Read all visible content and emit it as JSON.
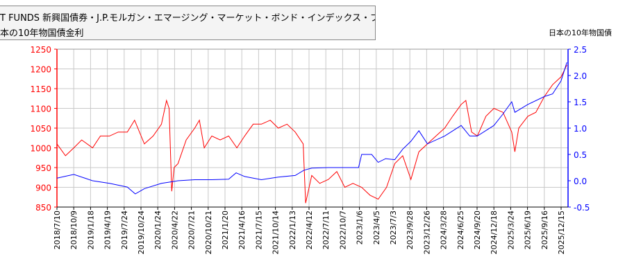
{
  "legend": {
    "line1": "T FUNDS 新興国債券・J.P.モルガン・エマージング・マーケット・ボンド・インデックス・プラス(為替ヘッジ無し)",
    "line2": "本の10年物国債金利"
  },
  "chart_data": {
    "type": "line",
    "right_axis_title": "日本の10年物国債",
    "grid": true,
    "x_ticks": [
      "2018/7/10",
      "2018/10/9",
      "2019/1/18",
      "2019/4/19",
      "2019/7/24",
      "2019/10/24",
      "2020/1/24",
      "2020/4/22",
      "2020/7/21",
      "2020/10/21",
      "2021/1/20",
      "2021/4/16",
      "2021/7/15",
      "2021/10/14",
      "2022/1/13",
      "2022/4/12",
      "2022/7/11",
      "2022/10/7",
      "2023/1/6",
      "2023/4/5",
      "2023/7/3",
      "2023/9/28",
      "2023/12/26",
      "2024/3/28",
      "2024/6/25",
      "2024/9/20",
      "2024/12/18",
      "2025/3/24",
      "2025/6/19",
      "2025/9/16",
      "2025/12/15"
    ],
    "xlim": [
      "2018-07-10",
      "2026-01-20"
    ],
    "left_axis": {
      "ylim": [
        850,
        1250
      ],
      "ticks": [
        850,
        900,
        950,
        1000,
        1050,
        1100,
        1150,
        1200,
        1250
      ],
      "color": "#ff0000"
    },
    "right_axis": {
      "ylim": [
        -0.5,
        2.5
      ],
      "ticks": [
        "-0.5",
        "0.0",
        "0.5",
        "1.0",
        "1.5",
        "2.0",
        "2.5"
      ],
      "color": "#0000ff"
    },
    "series": [
      {
        "axis": "left",
        "color": "#ff0000",
        "points": [
          [
            "2018-07-10",
            1010
          ],
          [
            "2018-08-25",
            980
          ],
          [
            "2018-10-09",
            1000
          ],
          [
            "2018-11-20",
            1020
          ],
          [
            "2019-01-18",
            1000
          ],
          [
            "2019-03-01",
            1030
          ],
          [
            "2019-04-19",
            1030
          ],
          [
            "2019-06-05",
            1040
          ],
          [
            "2019-07-24",
            1040
          ],
          [
            "2019-09-01",
            1070
          ],
          [
            "2019-10-24",
            1010
          ],
          [
            "2019-12-10",
            1030
          ],
          [
            "2020-01-24",
            1060
          ],
          [
            "2020-02-20",
            1120
          ],
          [
            "2020-03-05",
            1100
          ],
          [
            "2020-03-19",
            890
          ],
          [
            "2020-04-01",
            950
          ],
          [
            "2020-04-22",
            960
          ],
          [
            "2020-06-05",
            1020
          ],
          [
            "2020-07-21",
            1050
          ],
          [
            "2020-08-15",
            1070
          ],
          [
            "2020-09-10",
            1000
          ],
          [
            "2020-10-21",
            1030
          ],
          [
            "2020-12-05",
            1020
          ],
          [
            "2021-01-20",
            1030
          ],
          [
            "2021-03-05",
            1000
          ],
          [
            "2021-04-16",
            1030
          ],
          [
            "2021-06-01",
            1060
          ],
          [
            "2021-07-15",
            1060
          ],
          [
            "2021-09-01",
            1070
          ],
          [
            "2021-10-14",
            1050
          ],
          [
            "2021-11-30",
            1060
          ],
          [
            "2022-01-13",
            1040
          ],
          [
            "2022-02-25",
            1010
          ],
          [
            "2022-03-10",
            860
          ],
          [
            "2022-04-12",
            930
          ],
          [
            "2022-05-25",
            910
          ],
          [
            "2022-07-11",
            920
          ],
          [
            "2022-08-25",
            940
          ],
          [
            "2022-10-07",
            900
          ],
          [
            "2022-11-20",
            910
          ],
          [
            "2023-01-06",
            900
          ],
          [
            "2023-02-20",
            880
          ],
          [
            "2023-04-05",
            870
          ],
          [
            "2023-05-20",
            900
          ],
          [
            "2023-07-03",
            960
          ],
          [
            "2023-08-15",
            980
          ],
          [
            "2023-09-28",
            920
          ],
          [
            "2023-11-10",
            990
          ],
          [
            "2023-12-26",
            1010
          ],
          [
            "2024-02-10",
            1030
          ],
          [
            "2024-03-28",
            1050
          ],
          [
            "2024-05-10",
            1080
          ],
          [
            "2024-06-25",
            1110
          ],
          [
            "2024-07-20",
            1120
          ],
          [
            "2024-08-20",
            1040
          ],
          [
            "2024-09-20",
            1030
          ],
          [
            "2024-11-05",
            1080
          ],
          [
            "2024-12-18",
            1100
          ],
          [
            "2025-02-05",
            1090
          ],
          [
            "2025-03-24",
            1040
          ],
          [
            "2025-04-10",
            990
          ],
          [
            "2025-05-01",
            1050
          ],
          [
            "2025-06-19",
            1080
          ],
          [
            "2025-08-01",
            1090
          ],
          [
            "2025-09-16",
            1130
          ],
          [
            "2025-10-30",
            1160
          ],
          [
            "2025-12-15",
            1180
          ],
          [
            "2026-01-15",
            1210
          ]
        ]
      },
      {
        "axis": "right",
        "color": "#0000ff",
        "points": [
          [
            "2018-07-10",
            0.05
          ],
          [
            "2018-10-09",
            0.12
          ],
          [
            "2019-01-18",
            0.0
          ],
          [
            "2019-04-19",
            -0.05
          ],
          [
            "2019-07-24",
            -0.12
          ],
          [
            "2019-09-05",
            -0.25
          ],
          [
            "2019-10-24",
            -0.15
          ],
          [
            "2020-01-24",
            -0.05
          ],
          [
            "2020-04-22",
            0.0
          ],
          [
            "2020-07-21",
            0.02
          ],
          [
            "2020-10-21",
            0.02
          ],
          [
            "2021-01-20",
            0.03
          ],
          [
            "2021-03-01",
            0.15
          ],
          [
            "2021-04-16",
            0.08
          ],
          [
            "2021-07-15",
            0.02
          ],
          [
            "2021-10-14",
            0.07
          ],
          [
            "2022-01-13",
            0.1
          ],
          [
            "2022-03-01",
            0.2
          ],
          [
            "2022-04-12",
            0.24
          ],
          [
            "2022-07-11",
            0.25
          ],
          [
            "2022-10-07",
            0.25
          ],
          [
            "2022-12-20",
            0.25
          ],
          [
            "2023-01-06",
            0.5
          ],
          [
            "2023-03-01",
            0.5
          ],
          [
            "2023-04-05",
            0.35
          ],
          [
            "2023-05-15",
            0.42
          ],
          [
            "2023-07-03",
            0.4
          ],
          [
            "2023-08-15",
            0.6
          ],
          [
            "2023-09-28",
            0.75
          ],
          [
            "2023-11-10",
            0.95
          ],
          [
            "2023-12-26",
            0.7
          ],
          [
            "2024-03-28",
            0.85
          ],
          [
            "2024-06-25",
            1.05
          ],
          [
            "2024-08-10",
            0.85
          ],
          [
            "2024-09-20",
            0.85
          ],
          [
            "2024-12-18",
            1.05
          ],
          [
            "2025-02-01",
            1.25
          ],
          [
            "2025-03-24",
            1.5
          ],
          [
            "2025-04-10",
            1.3
          ],
          [
            "2025-06-19",
            1.45
          ],
          [
            "2025-09-16",
            1.6
          ],
          [
            "2025-10-30",
            1.65
          ],
          [
            "2025-12-15",
            1.9
          ],
          [
            "2026-01-15",
            2.25
          ]
        ]
      }
    ]
  }
}
